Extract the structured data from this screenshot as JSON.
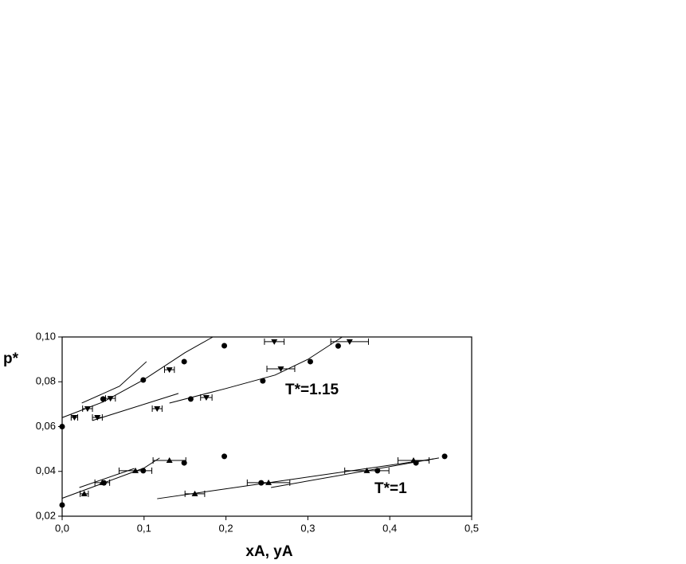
{
  "chart_data": {
    "type": "scatter",
    "y_label": "p*",
    "x_label": "xA, yA",
    "annotations": [
      "T*=1.15",
      "T*=1"
    ],
    "xlim": [
      0,
      0.5
    ],
    "ylim": [
      0.02,
      0.1
    ],
    "xticks": [
      {
        "value": 0,
        "label": "0,0"
      },
      {
        "value": 0.1,
        "label": "0,1"
      },
      {
        "value": 0.2,
        "label": "0,2"
      },
      {
        "value": 0.3,
        "label": "0,3"
      },
      {
        "value": 0.4,
        "label": "0,4"
      },
      {
        "value": 0.5,
        "label": "0,5"
      }
    ],
    "yticks": [
      {
        "value": 0.02,
        "label": "0,02"
      },
      {
        "value": 0.04,
        "label": "0,04"
      },
      {
        "value": 0.06,
        "label": "0,06"
      },
      {
        "value": 0.08,
        "label": "0,08"
      },
      {
        "value": 0.1,
        "label": "0,10"
      }
    ],
    "series": [
      {
        "marker": "circle",
        "color": "#000000",
        "x": [
          0,
          0.05,
          0.099,
          0.149,
          0.198,
          0.157,
          0.245,
          0.303,
          0.337,
          0,
          0.051,
          0.099,
          0.149,
          0.198,
          0.243,
          0.385,
          0.432,
          0.467
        ],
        "values": [
          0.06,
          0.0723,
          0.0808,
          0.089,
          0.0961,
          0.0723,
          0.0804,
          0.089,
          0.096,
          0.025,
          0.0349,
          0.0403,
          0.0438,
          0.0467,
          0.0349,
          0.0403,
          0.0438,
          0.0467
        ]
      },
      {
        "marker": "triangle-down",
        "color": "#000000",
        "x": [
          0.015,
          0.031,
          0.059,
          0.043,
          0.116,
          0.131,
          0.176,
          0.267,
          0.259,
          0.351
        ],
        "values": [
          0.0641,
          0.068,
          0.0726,
          0.0641,
          0.068,
          0.0854,
          0.073,
          0.0858,
          0.0979,
          0.0979
        ],
        "xerr": [
          0.004,
          0.006,
          0.006,
          0.006,
          0.006,
          0.006,
          0.007,
          0.017,
          0.012,
          0.023
        ]
      },
      {
        "marker": "triangle-up",
        "color": "#000000",
        "x": [
          0.027,
          0.049,
          0.0895,
          0.131,
          0.162,
          0.252,
          0.372,
          0.429
        ],
        "values": [
          0.03,
          0.035,
          0.0403,
          0.0449,
          0.03,
          0.035,
          0.0403,
          0.0449
        ],
        "xerr": [
          0.005,
          0.009,
          0.02,
          0.02,
          0.012,
          0.026,
          0.027,
          0.019
        ]
      },
      {
        "marker": "line",
        "color": "#000000",
        "x": [
          0,
          0.05,
          0.1,
          0.15,
          0.184
        ],
        "values": [
          0.064,
          0.071,
          0.081,
          0.093,
          0.1
        ]
      },
      {
        "marker": "line",
        "color": "#000000",
        "x": [
          0.024,
          0.07,
          0.103
        ],
        "values": [
          0.0705,
          0.078,
          0.089
        ]
      },
      {
        "marker": "line",
        "color": "#000000",
        "x": [
          0.037,
          0.142
        ],
        "values": [
          0.0627,
          0.0748
        ]
      },
      {
        "marker": "line",
        "color": "#000000",
        "x": [
          0.131,
          0.2,
          0.26,
          0.3,
          0.342
        ],
        "values": [
          0.0705,
          0.077,
          0.083,
          0.09,
          0.1
        ]
      },
      {
        "marker": "line",
        "color": "#000000",
        "x": [
          0,
          0.1,
          0.119
        ],
        "values": [
          0.028,
          0.0415,
          0.046
        ]
      },
      {
        "marker": "line",
        "color": "#000000",
        "x": [
          0.021,
          0.088
        ],
        "values": [
          0.0328,
          0.0413
        ]
      },
      {
        "marker": "line",
        "color": "#000000",
        "x": [
          0.116,
          0.454
        ],
        "values": [
          0.0278,
          0.0456
        ]
      },
      {
        "marker": "line",
        "color": "#000000",
        "x": [
          0.255,
          0.46
        ],
        "values": [
          0.0328,
          0.046
        ]
      }
    ]
  }
}
